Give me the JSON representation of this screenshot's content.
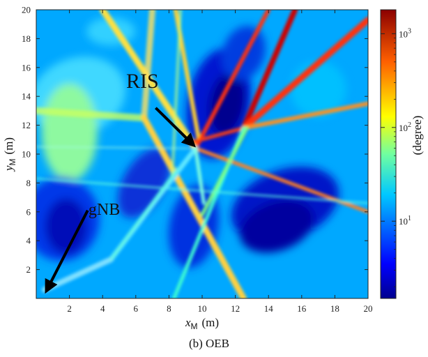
{
  "chart_data": {
    "type": "heatmap",
    "title": "",
    "caption": "(b) OEB",
    "xlabel": {
      "var": "x",
      "sub": "M",
      "unit": "(m)"
    },
    "ylabel": {
      "var": "y",
      "sub": "M",
      "unit": "(m)"
    },
    "xlim": [
      0,
      20
    ],
    "ylim": [
      0,
      20
    ],
    "xticks": [
      2,
      4,
      6,
      8,
      10,
      12,
      14,
      16,
      18,
      20
    ],
    "yticks": [
      2,
      4,
      6,
      8,
      10,
      12,
      14,
      16,
      18,
      20
    ],
    "colorbar": {
      "label": "(degree)",
      "scale": "log",
      "range": [
        1.5,
        1800
      ],
      "ticks": [
        {
          "value": 10,
          "base": "10",
          "exp": "1"
        },
        {
          "value": 100,
          "base": "10",
          "exp": "2"
        },
        {
          "value": 1000,
          "base": "10",
          "exp": "3"
        }
      ],
      "colormap": "jet"
    },
    "annotations": [
      {
        "text": "RIS",
        "text_at": [
          6.4,
          14.6
        ],
        "arrow_from": [
          7.2,
          13.2
        ],
        "arrow_to": [
          9.5,
          10.6
        ]
      },
      {
        "text": "gNB",
        "text_at": [
          4.1,
          5.8
        ],
        "arrow_from": [
          3.1,
          6.1
        ],
        "arrow_to": [
          0.6,
          0.5
        ]
      }
    ],
    "grid": false,
    "legend": "none"
  }
}
